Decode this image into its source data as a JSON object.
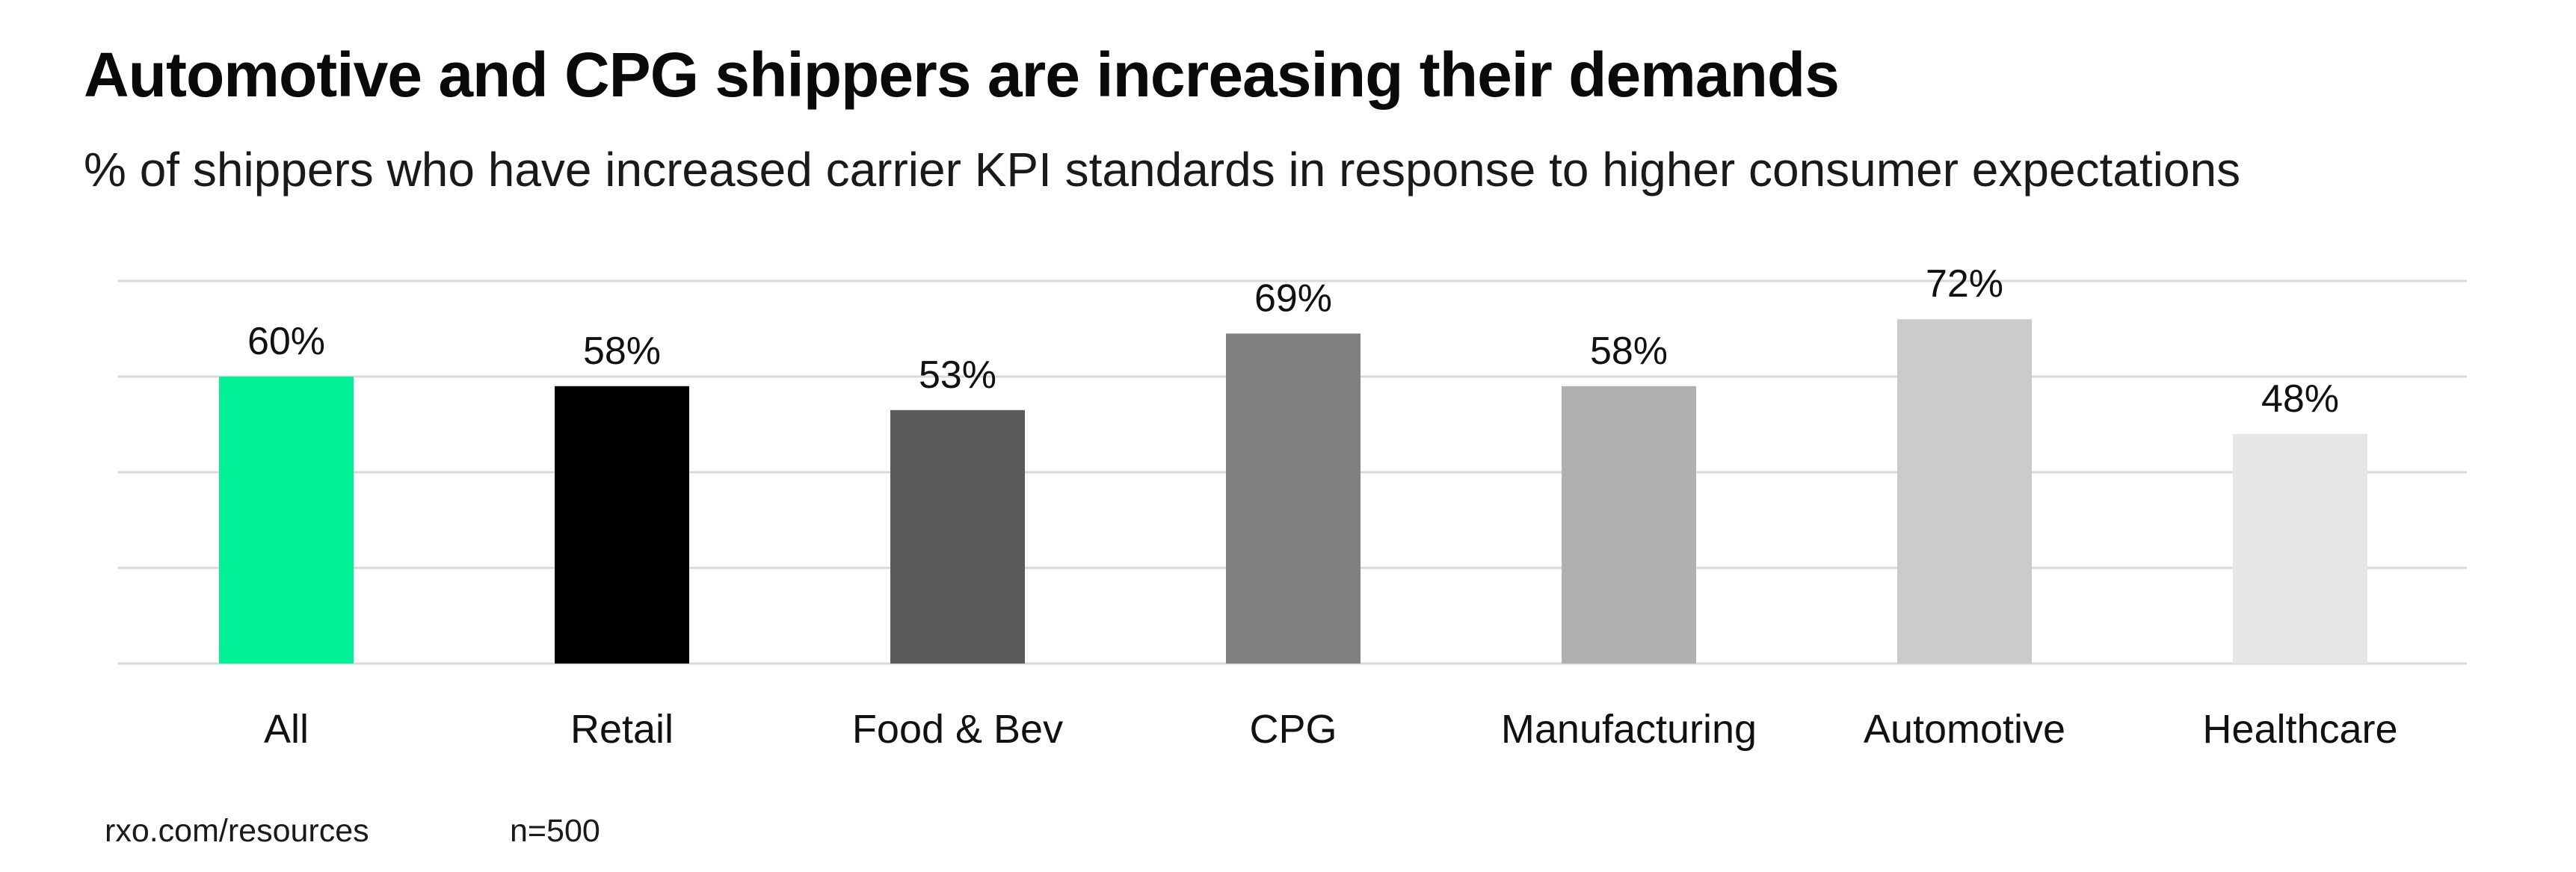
{
  "header": {
    "title": "Automotive and CPG shippers are increasing their demands",
    "subtitle": "% of shippers who have increased carrier KPI standards in response to higher consumer expectations"
  },
  "footer": {
    "source": "rxo.com/resources",
    "sample": "n=500"
  },
  "chart_data": {
    "type": "bar",
    "categories": [
      "All",
      "Retail",
      "Food & Bev",
      "CPG",
      "Manufacturing",
      "Automotive",
      "Healthcare"
    ],
    "values": [
      60,
      58,
      53,
      69,
      58,
      72,
      48
    ],
    "data_labels": [
      "60%",
      "58%",
      "53%",
      "69%",
      "58%",
      "72%",
      "48%"
    ],
    "colors": [
      "#00f098",
      "#000000",
      "#5a5a5a",
      "#7f7f7f",
      "#b0b0b0",
      "#cbcbcb",
      "#e6e6e6"
    ],
    "gridline_color": "#d9d9d9",
    "ylim": [
      0,
      80
    ],
    "y_gridlines": [
      0,
      20,
      40,
      60,
      80
    ],
    "grid": true,
    "legend": "none",
    "xlabel": "",
    "ylabel": ""
  }
}
